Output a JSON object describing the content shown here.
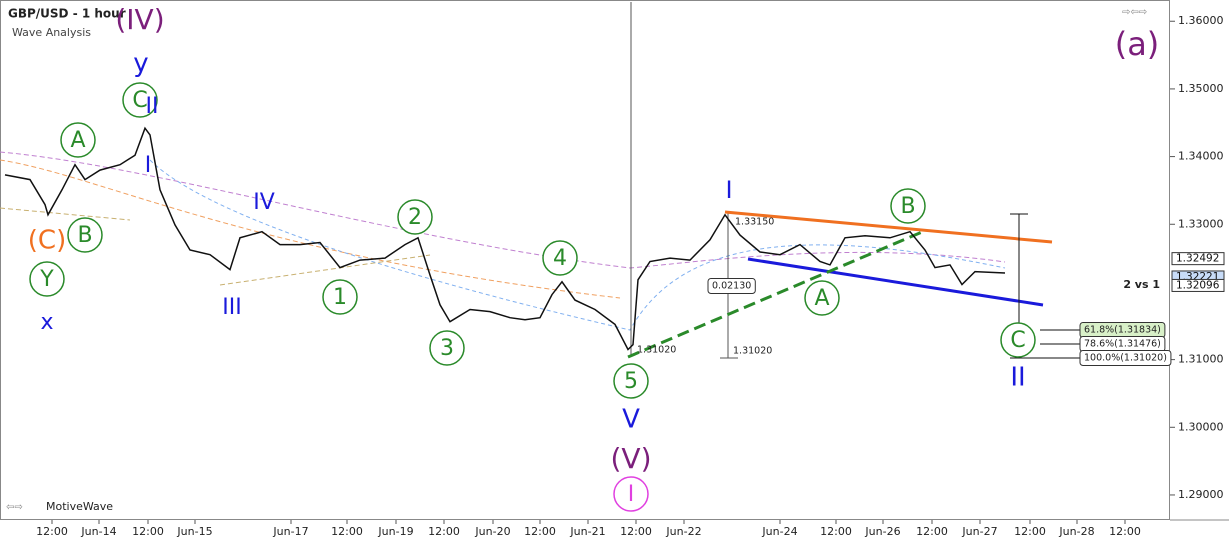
{
  "chart_data": {
    "type": "line",
    "title": "GBP/USD - 1 hour",
    "subtitle": "Wave Analysis",
    "footer": "MotiveWave",
    "x": [
      1.25,
      7.5,
      11.25,
      12,
      15.5,
      18.75,
      21.25,
      25,
      30,
      33.75,
      36.25,
      37.5,
      40,
      43.75,
      47.5,
      52.5,
      57.5,
      60,
      65.5,
      70,
      75,
      80,
      85,
      90,
      96.25,
      101.25,
      104.5,
      107.5,
      110,
      112.5,
      117.5,
      122.5,
      127.5,
      131.25,
      135,
      138,
      140.5,
      143.75,
      148.75,
      153.75,
      157,
      158.25,
      159.5,
      162.5,
      167.5,
      172.5,
      177.5,
      181.25,
      185,
      190,
      195,
      200,
      205,
      207.5,
      211.25,
      216.25,
      222.5,
      227.5,
      231.25,
      233.75,
      237.5,
      240.5,
      243.75,
      251.25
    ],
    "values": [
      1.3373,
      1.3366,
      1.3329,
      1.3314,
      1.3351,
      1.3388,
      1.3366,
      1.338,
      1.3388,
      1.3402,
      1.3442,
      1.3432,
      1.3351,
      1.3299,
      1.3262,
      1.3255,
      1.3233,
      1.328,
      1.3289,
      1.327,
      1.327,
      1.3273,
      1.3236,
      1.3247,
      1.325,
      1.327,
      1.328,
      1.3225,
      1.3181,
      1.3156,
      1.3174,
      1.3171,
      1.3162,
      1.3159,
      1.3162,
      1.3196,
      1.3215,
      1.3188,
      1.3174,
      1.3152,
      1.3115,
      1.3122,
      1.3218,
      1.3245,
      1.325,
      1.3247,
      1.3277,
      1.3314,
      1.3284,
      1.3259,
      1.3255,
      1.327,
      1.3245,
      1.324,
      1.328,
      1.3283,
      1.328,
      1.3289,
      1.3262,
      1.3236,
      1.324,
      1.3211,
      1.323,
      1.3228
    ],
    "color": "#111111",
    "xlim": [
      0,
      292.5
    ],
    "ylim": [
      1.2863,
      1.3624
    ],
    "grid": false,
    "yticks": [
      {
        "value": 1.36,
        "label": "1.36000"
      },
      {
        "value": 1.35,
        "label": "1.35000"
      },
      {
        "value": 1.34,
        "label": "1.34000"
      },
      {
        "value": 1.33,
        "label": "1.33000"
      },
      {
        "value": 1.31,
        "label": "1.31000"
      },
      {
        "value": 1.3,
        "label": "1.30000"
      },
      {
        "value": 1.29,
        "label": "1.29000"
      }
    ],
    "xticks": [
      {
        "value": 13,
        "label": "12:00"
      },
      {
        "value": 24.75,
        "label": "Jun-14"
      },
      {
        "value": 37,
        "label": "12:00"
      },
      {
        "value": 48.75,
        "label": "Jun-15"
      },
      {
        "value": 72.75,
        "label": "Jun-17"
      },
      {
        "value": 86.75,
        "label": "12:00"
      },
      {
        "value": 99,
        "label": "Jun-19"
      },
      {
        "value": 111,
        "label": "12:00"
      },
      {
        "value": 123.25,
        "label": "Jun-20"
      },
      {
        "value": 135,
        "label": "12:00"
      },
      {
        "value": 147,
        "label": "Jun-21"
      },
      {
        "value": 159,
        "label": "12:00"
      },
      {
        "value": 171,
        "label": "Jun-22"
      },
      {
        "value": 195,
        "label": "Jun-24"
      },
      {
        "value": 209,
        "label": "12:00"
      },
      {
        "value": 220.75,
        "label": "Jun-26"
      },
      {
        "value": 233,
        "label": "12:00"
      },
      {
        "value": 245,
        "label": "Jun-27"
      },
      {
        "value": 257.5,
        "label": "12:00"
      },
      {
        "value": 269.25,
        "label": "Jun-28"
      },
      {
        "value": 281.25,
        "label": "12:00"
      }
    ],
    "price_labels": [
      {
        "value": 1.32492,
        "label": "1.32492"
      },
      {
        "value": 1.32221,
        "label": "1.32221"
      },
      {
        "value": 1.32096,
        "label": "1.32096"
      }
    ],
    "wave_labels": [
      {
        "text": "(IV)",
        "color": "#7b1f7b"
      },
      {
        "text": "y",
        "color": "#1a1adb"
      },
      {
        "text": "C",
        "color": "#2a8a2a",
        "circled": true
      },
      {
        "text": "II",
        "color": "#1a1adb"
      },
      {
        "text": "I",
        "color": "#1a1adb"
      },
      {
        "text": "A",
        "color": "#2a8a2a",
        "circled": true
      },
      {
        "text": "B",
        "color": "#2a8a2a",
        "circled": true
      },
      {
        "text": "(C)",
        "color": "#f07020"
      },
      {
        "text": "Y",
        "color": "#2a8a2a",
        "circled": true
      },
      {
        "text": "x",
        "color": "#1a1adb"
      },
      {
        "text": "IV",
        "color": "#1a1adb"
      },
      {
        "text": "III",
        "color": "#1a1adb"
      },
      {
        "text": "1",
        "color": "#2a8a2a",
        "circled": true
      },
      {
        "text": "2",
        "color": "#2a8a2a",
        "circled": true
      },
      {
        "text": "3",
        "color": "#2a8a2a",
        "circled": true
      },
      {
        "text": "4",
        "color": "#2a8a2a",
        "circled": true
      },
      {
        "text": "5",
        "color": "#2a8a2a",
        "circled": true
      },
      {
        "text": "V",
        "color": "#1a1adb"
      },
      {
        "text": "(V)",
        "color": "#7b1f7b"
      },
      {
        "text": "I",
        "color": "#e040e0",
        "circled": true
      },
      {
        "text": "I",
        "color": "#1a1adb"
      },
      {
        "text": "A",
        "color": "#2a8a2a",
        "circled": true
      },
      {
        "text": "B",
        "color": "#2a8a2a",
        "circled": true
      },
      {
        "text": "C",
        "color": "#2a8a2a",
        "circled": true
      },
      {
        "text": "II",
        "color": "#1a1adb"
      },
      {
        "text": "(a)",
        "color": "#7b1f7b"
      }
    ],
    "annotations": [
      "2 vs 1",
      "61.8%(1.31834)",
      "78.6%(1.31476)",
      "100.0%(1.31020)",
      "0.02130",
      "1.33150",
      "1.31020",
      "1.31020"
    ]
  }
}
